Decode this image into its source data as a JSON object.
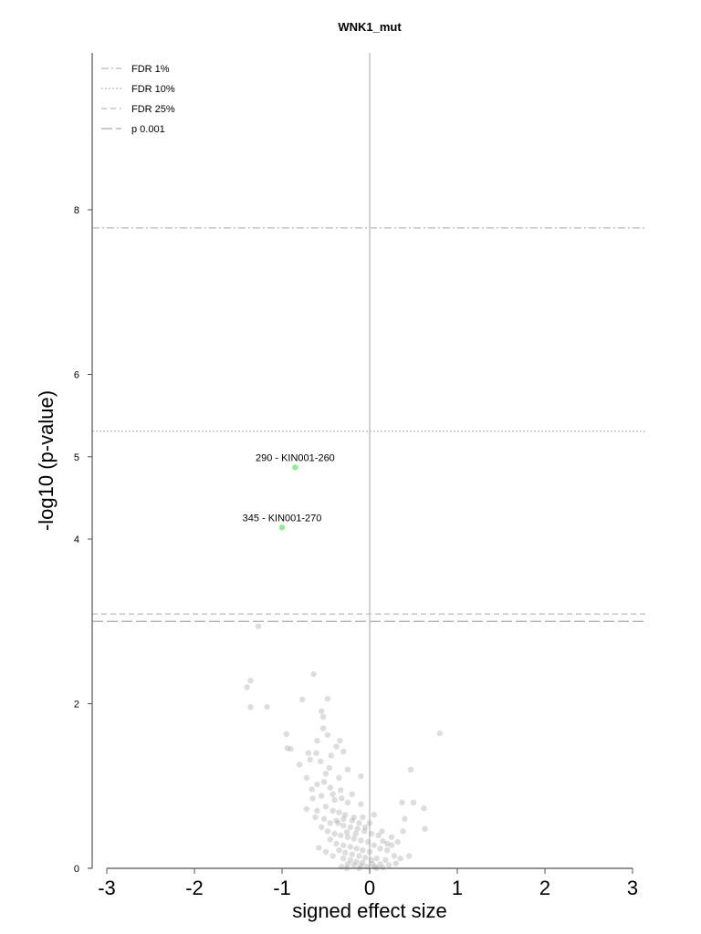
{
  "chart_data": {
    "type": "scatter",
    "title": "WNK1_mut",
    "xlabel": "signed effect size",
    "ylabel": "-log10 (p-value)",
    "xlim": [
      -3.15,
      3.15
    ],
    "ylim": [
      0,
      10.1
    ],
    "x_ticks": [
      -3,
      -2,
      -1,
      0,
      1,
      2,
      3
    ],
    "x_tick_labels": [
      "-3",
      "-2",
      "-1",
      "0",
      "1",
      "2",
      "3"
    ],
    "y_ticks": [
      0,
      2,
      4,
      5,
      6,
      8
    ],
    "y_tick_labels": [
      "0",
      "2",
      "4",
      "5",
      "6",
      "8"
    ],
    "legend_position": "top-left",
    "thresholds": [
      {
        "name": "FDR 1%",
        "y": 7.78,
        "style": "dashdot",
        "color": "#b8b8b8"
      },
      {
        "name": "FDR 10%",
        "y": 5.31,
        "style": "dotted",
        "color": "#b8b8b8"
      },
      {
        "name": "FDR 25%",
        "y": 3.09,
        "style": "dashed",
        "color": "#b8b8b8"
      },
      {
        "name": "p 0.001",
        "y": 3.0,
        "style": "longdash",
        "color": "#aaaaaa"
      }
    ],
    "highlighted_points": [
      {
        "label": "290 - KIN001-260",
        "x": -0.85,
        "y": 4.87,
        "color": "#90ee90"
      },
      {
        "label": "345 - KIN001-270",
        "x": -1.0,
        "y": 4.14,
        "color": "#90ee90"
      }
    ],
    "point_color": "#909090",
    "points": [
      [
        -1.27,
        2.94
      ],
      [
        -1.4,
        2.2
      ],
      [
        -1.36,
        2.28
      ],
      [
        -1.36,
        1.96
      ],
      [
        -1.17,
        1.96
      ],
      [
        -0.64,
        2.36
      ],
      [
        -0.77,
        2.05
      ],
      [
        -0.48,
        2.06
      ],
      [
        -0.55,
        1.91
      ],
      [
        -0.53,
        1.84
      ],
      [
        -0.53,
        1.7
      ],
      [
        -0.95,
        1.63
      ],
      [
        -0.94,
        1.46
      ],
      [
        -0.9,
        1.45
      ],
      [
        -0.34,
        1.55
      ],
      [
        -0.48,
        1.62
      ],
      [
        -0.6,
        1.55
      ],
      [
        0.8,
        1.64
      ],
      [
        0.47,
        1.2
      ],
      [
        -0.8,
        1.26
      ],
      [
        -0.7,
        1.4
      ],
      [
        -0.61,
        1.4
      ],
      [
        -0.56,
        1.3
      ],
      [
        -0.44,
        1.37
      ],
      [
        -0.3,
        1.42
      ],
      [
        -0.25,
        1.2
      ],
      [
        -0.35,
        1.1
      ],
      [
        -0.5,
        1.15
      ],
      [
        -0.1,
        1.12
      ],
      [
        -0.72,
        1.1
      ],
      [
        -0.6,
        1.02
      ],
      [
        -0.45,
        0.98
      ],
      [
        -0.33,
        0.95
      ],
      [
        -0.2,
        0.9
      ],
      [
        -0.55,
        0.88
      ],
      [
        -0.65,
        0.85
      ],
      [
        -0.4,
        0.83
      ],
      [
        -0.25,
        0.8
      ],
      [
        -0.1,
        0.78
      ],
      [
        0.37,
        0.8
      ],
      [
        0.38,
        0.45
      ],
      [
        0.5,
        0.8
      ],
      [
        0.62,
        0.73
      ],
      [
        0.63,
        0.48
      ],
      [
        0.4,
        0.6
      ],
      [
        0.45,
        0.15
      ],
      [
        0.32,
        0.32
      ],
      [
        0.25,
        0.28
      ],
      [
        0.2,
        0.22
      ],
      [
        0.15,
        0.33
      ],
      [
        0.12,
        0.24
      ],
      [
        0.28,
        0.15
      ],
      [
        0.08,
        0.12
      ],
      [
        0.1,
        0.4
      ],
      [
        0.05,
        0.28
      ],
      [
        -0.5,
        0.75
      ],
      [
        -0.42,
        0.7
      ],
      [
        -0.35,
        0.68
      ],
      [
        -0.28,
        0.65
      ],
      [
        -0.18,
        0.62
      ],
      [
        -0.6,
        0.7
      ],
      [
        -0.52,
        0.6
      ],
      [
        -0.45,
        0.55
      ],
      [
        -0.38,
        0.58
      ],
      [
        -0.3,
        0.52
      ],
      [
        -0.22,
        0.5
      ],
      [
        -0.14,
        0.48
      ],
      [
        -0.06,
        0.45
      ],
      [
        -0.55,
        0.5
      ],
      [
        -0.48,
        0.45
      ],
      [
        -0.4,
        0.42
      ],
      [
        -0.33,
        0.4
      ],
      [
        -0.25,
        0.38
      ],
      [
        -0.18,
        0.36
      ],
      [
        -0.1,
        0.34
      ],
      [
        -0.02,
        0.32
      ],
      [
        -0.45,
        0.35
      ],
      [
        -0.38,
        0.3
      ],
      [
        -0.3,
        0.28
      ],
      [
        -0.22,
        0.26
      ],
      [
        -0.15,
        0.24
      ],
      [
        -0.08,
        0.22
      ],
      [
        0.0,
        0.2
      ],
      [
        -0.35,
        0.22
      ],
      [
        -0.28,
        0.19
      ],
      [
        -0.2,
        0.17
      ],
      [
        -0.12,
        0.15
      ],
      [
        -0.05,
        0.13
      ],
      [
        0.02,
        0.1
      ],
      [
        -0.3,
        0.12
      ],
      [
        -0.22,
        0.1
      ],
      [
        -0.15,
        0.08
      ],
      [
        -0.08,
        0.07
      ],
      [
        0.03,
        0.05
      ],
      [
        -0.25,
        0.05
      ],
      [
        -0.18,
        0.04
      ],
      [
        -0.1,
        0.03
      ],
      [
        -0.03,
        0.02
      ],
      [
        0.06,
        0.02
      ],
      [
        0.12,
        0.05
      ],
      [
        -0.58,
        0.25
      ],
      [
        -0.5,
        0.2
      ],
      [
        -0.42,
        0.15
      ],
      [
        0.18,
        0.1
      ],
      [
        0.22,
        0.04
      ],
      [
        0.3,
        0.06
      ],
      [
        0.35,
        0.12
      ],
      [
        -0.32,
        0.02
      ],
      [
        -0.26,
        0.0
      ],
      [
        -0.12,
        0.0
      ],
      [
        0.08,
        0.0
      ],
      [
        0.15,
        0.01
      ],
      [
        -0.36,
        0.55
      ],
      [
        -0.26,
        0.44
      ],
      [
        -0.16,
        0.42
      ],
      [
        -0.42,
        0.9
      ],
      [
        -0.32,
        0.85
      ],
      [
        -0.46,
        1.22
      ],
      [
        -0.68,
        1.32
      ],
      [
        -0.38,
        1.48
      ],
      [
        -0.3,
        0.6
      ],
      [
        -0.2,
        0.58
      ],
      [
        -0.12,
        0.55
      ],
      [
        -0.05,
        0.5
      ],
      [
        0.02,
        0.42
      ],
      [
        -0.62,
        0.62
      ],
      [
        -0.66,
        0.96
      ],
      [
        -0.72,
        0.72
      ],
      [
        -0.52,
        1.05
      ],
      [
        0.14,
        0.45
      ],
      [
        0.0,
        0.55
      ],
      [
        0.05,
        0.65
      ],
      [
        -0.08,
        0.62
      ],
      [
        0.2,
        0.3
      ],
      [
        0.25,
        0.38
      ]
    ]
  }
}
